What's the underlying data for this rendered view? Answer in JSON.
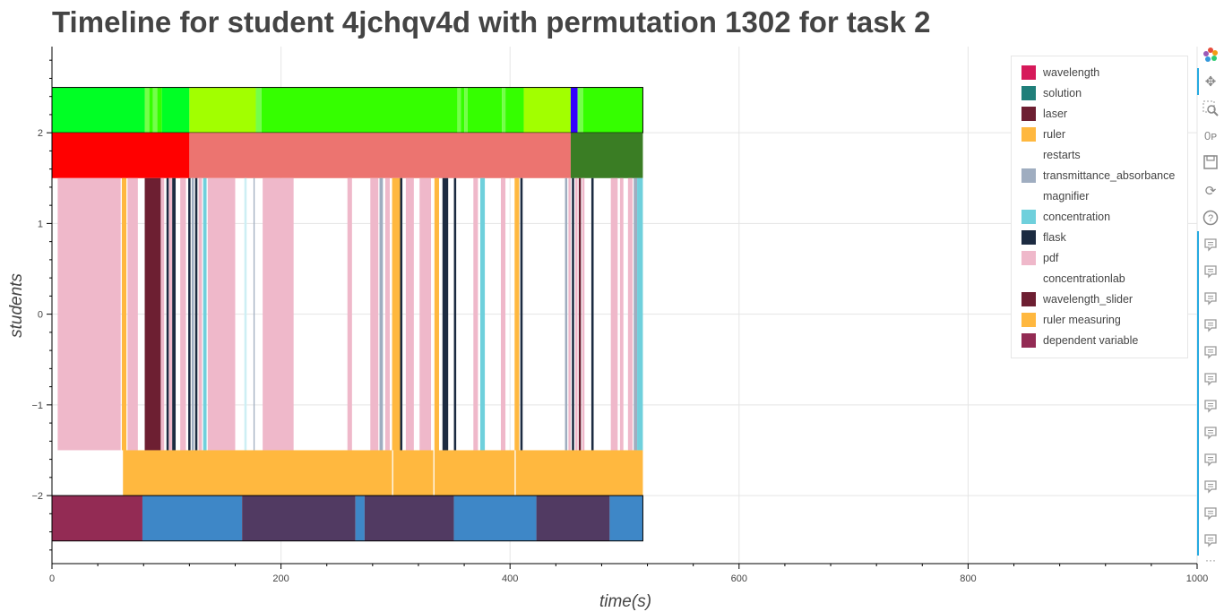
{
  "page": {
    "title": "Timeline for student 4jchqv4d with permutation 1302 for task 2"
  },
  "colors": {
    "wavelength": "#d6195a",
    "solution": "#207f7a",
    "laser": "#6d1f32",
    "ruler": "#ffb83f",
    "restarts": "#ffffff",
    "transmittance_absorbance": "#9fadc0",
    "magnifier": "#ffffff",
    "concentration": "#6fd0dc",
    "flask": "#1c2b41",
    "pdf": "#efb8ca",
    "concentrationlab": "#ffffff",
    "wavelength_slider": "#6d1f32",
    "ruler measuring": "#ffb83f",
    "dependent variable": "#932b54",
    "green_bright": "#00ff25",
    "green_mid": "#35ff00",
    "green_lime": "#a2ff00",
    "green_light": "#74ff4a",
    "blue_marker": "#3300ff",
    "red": "#ff0000",
    "salmon": "#ec7470",
    "dark_green": "#3a7d24",
    "lane_blue": "#3e87c7",
    "lane_purple": "#513a62"
  },
  "chart_data": {
    "type": "timeline",
    "title": "Timeline for student 4jchqv4d with permutation 1302 for task 2",
    "xlabel": "time(s)",
    "ylabel": "students",
    "xlim": [
      0,
      1000
    ],
    "ylim": [
      -2.75,
      2.95
    ],
    "x_ticks": [
      0,
      200,
      400,
      600,
      800,
      1000
    ],
    "y_ticks": [
      2,
      1,
      0,
      -1,
      -2
    ],
    "y_tick_labels": [
      "2",
      "1",
      "0",
      "−1",
      "−2"
    ],
    "grid": true,
    "legend": [
      {
        "name": "wavelength",
        "color": "#d6195a"
      },
      {
        "name": "solution",
        "color": "#207f7a"
      },
      {
        "name": "laser",
        "color": "#6d1f32"
      },
      {
        "name": "ruler",
        "color": "#ffb83f"
      },
      {
        "name": "restarts",
        "color": "#ffffff"
      },
      {
        "name": "transmittance_absorbance",
        "color": "#9fadc0"
      },
      {
        "name": "magnifier",
        "color": "#ffffff"
      },
      {
        "name": "concentration",
        "color": "#6fd0dc"
      },
      {
        "name": "flask",
        "color": "#1c2b41"
      },
      {
        "name": "pdf",
        "color": "#efb8ca"
      },
      {
        "name": "concentrationlab",
        "color": "#ffffff"
      },
      {
        "name": "wavelength_slider",
        "color": "#6d1f32"
      },
      {
        "name": "ruler measuring",
        "color": "#ffb83f"
      },
      {
        "name": "dependent variable",
        "color": "#932b54"
      }
    ],
    "lanes": [
      {
        "name": "top-green",
        "y0": 2.0,
        "y1": 2.5,
        "outline": true,
        "segments": [
          [
            0,
            81,
            "#00ff25"
          ],
          [
            81,
            85,
            "#74ff4a"
          ],
          [
            85,
            88,
            "#35ff00"
          ],
          [
            88,
            92,
            "#74ff4a"
          ],
          [
            92,
            96,
            "#35ff00"
          ],
          [
            96,
            120,
            "#00ff25"
          ],
          [
            120,
            178,
            "#a2ff00"
          ],
          [
            178,
            183,
            "#74ff4a"
          ],
          [
            183,
            354,
            "#35ff00"
          ],
          [
            354,
            357,
            "#74ff4a"
          ],
          [
            357,
            360,
            "#35ff00"
          ],
          [
            360,
            363,
            "#74ff4a"
          ],
          [
            363,
            393,
            "#35ff00"
          ],
          [
            393,
            396,
            "#74ff4a"
          ],
          [
            396,
            412,
            "#35ff00"
          ],
          [
            412,
            453,
            "#a2ff00"
          ],
          [
            453,
            459,
            "#3300ff"
          ],
          [
            459,
            464,
            "#74ff4a"
          ],
          [
            464,
            516,
            "#35ff00"
          ]
        ]
      },
      {
        "name": "phase",
        "y0": 1.5,
        "y1": 2.0,
        "outline": false,
        "segments": [
          [
            0,
            120,
            "#ff0000"
          ],
          [
            120,
            453,
            "#ec7470"
          ],
          [
            453,
            516,
            "#3a7d24"
          ]
        ]
      },
      {
        "name": "actions",
        "y0": -1.5,
        "y1": 1.5,
        "outline": false,
        "segments": [
          [
            5,
            60,
            "#efb8ca"
          ],
          [
            61,
            65,
            "#ffb83f"
          ],
          [
            66,
            75,
            "#efb8ca"
          ],
          [
            81,
            82,
            "#9fadc0"
          ],
          [
            81,
            95,
            "#6d1f32"
          ],
          [
            95,
            98,
            "#efb8ca"
          ],
          [
            100,
            102,
            "#1c2b41"
          ],
          [
            102,
            105,
            "#efb8ca"
          ],
          [
            105,
            108,
            "#1c2b41"
          ],
          [
            112,
            117,
            "#efb8ca"
          ],
          [
            119,
            121,
            "#1c2b41"
          ],
          [
            122,
            124,
            "#9fadc0"
          ],
          [
            125,
            127,
            "#1c2b41"
          ],
          [
            128,
            131,
            "#efb8ca"
          ],
          [
            132,
            135,
            "#6fd0dc"
          ],
          [
            136,
            160,
            "#efb8ca"
          ],
          [
            168,
            170,
            "#cdeff4"
          ],
          [
            176,
            177,
            "#9fadc0"
          ],
          [
            184,
            211,
            "#efb8ca"
          ],
          [
            258,
            262,
            "#efb8ca"
          ],
          [
            278,
            285,
            "#efb8ca"
          ],
          [
            286,
            289,
            "#9fadc0"
          ],
          [
            291,
            295,
            "#efb8ca"
          ],
          [
            297,
            304,
            "#ffb83f"
          ],
          [
            304,
            306,
            "#1c2b41"
          ],
          [
            309,
            316,
            "#efb8ca"
          ],
          [
            321,
            331,
            "#efb8ca"
          ],
          [
            334,
            338,
            "#ffb83f"
          ],
          [
            341,
            346,
            "#1c2b41"
          ],
          [
            351,
            353,
            "#1c2b41"
          ],
          [
            368,
            372,
            "#efb8ca"
          ],
          [
            374,
            378,
            "#6fd0dc"
          ],
          [
            392,
            396,
            "#efb8ca"
          ],
          [
            404,
            408,
            "#ffb83f"
          ],
          [
            409,
            411,
            "#1c2b41"
          ],
          [
            448,
            450,
            "#9fadc0"
          ],
          [
            451,
            453,
            "#efb8ca"
          ],
          [
            454,
            456,
            "#1c2b41"
          ],
          [
            457,
            459,
            "#efb8ca"
          ],
          [
            460,
            462,
            "#6d1f32"
          ],
          [
            463,
            465,
            "#efb8ca"
          ],
          [
            471,
            473,
            "#1c2b41"
          ],
          [
            488,
            494,
            "#efb8ca"
          ],
          [
            496,
            499,
            "#efb8ca"
          ],
          [
            503,
            507,
            "#efb8ca"
          ],
          [
            508,
            511,
            "#9fadc0"
          ],
          [
            511,
            516,
            "#6fd0dc"
          ]
        ]
      },
      {
        "name": "ruler",
        "y0": -2.0,
        "y1": -1.5,
        "outline": false,
        "segments": [
          [
            62,
            297,
            "#ffb83f"
          ],
          [
            298,
            333,
            "#ffb83f"
          ],
          [
            334,
            404,
            "#ffb83f"
          ],
          [
            405,
            516,
            "#ffb83f"
          ]
        ]
      },
      {
        "name": "variable",
        "y0": -2.5,
        "y1": -2.0,
        "outline": true,
        "segments": [
          [
            0,
            79,
            "#932b54"
          ],
          [
            79,
            166,
            "#3e87c7"
          ],
          [
            166,
            265,
            "#513a62"
          ],
          [
            265,
            273,
            "#3e87c7"
          ],
          [
            273,
            351,
            "#513a62"
          ],
          [
            351,
            423,
            "#3e87c7"
          ],
          [
            423,
            487,
            "#513a62"
          ],
          [
            487,
            516,
            "#3e87c7"
          ]
        ]
      }
    ]
  }
}
